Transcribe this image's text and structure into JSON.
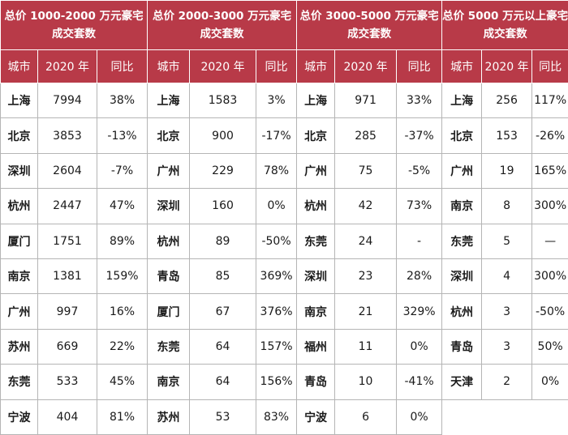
{
  "groups": [
    {
      "title": "总价 1000-2000 万元豪宅成交套数",
      "col_city": "城市",
      "col_year": "2020 年",
      "col_yoy": "同比",
      "rows": [
        {
          "city": "上海",
          "count": "7994",
          "yoy": "38%"
        },
        {
          "city": "北京",
          "count": "3853",
          "yoy": "-13%"
        },
        {
          "city": "深圳",
          "count": "2604",
          "yoy": "-7%"
        },
        {
          "city": "杭州",
          "count": "2447",
          "yoy": "47%"
        },
        {
          "city": "厦门",
          "count": "1751",
          "yoy": "89%"
        },
        {
          "city": "南京",
          "count": "1381",
          "yoy": "159%"
        },
        {
          "city": "广州",
          "count": "997",
          "yoy": "16%"
        },
        {
          "city": "苏州",
          "count": "669",
          "yoy": "22%"
        },
        {
          "city": "东莞",
          "count": "533",
          "yoy": "45%"
        },
        {
          "city": "宁波",
          "count": "404",
          "yoy": "81%"
        }
      ]
    },
    {
      "title": "总价 2000-3000 万元豪宅成交套数",
      "col_city": "城市",
      "col_year": "2020 年",
      "col_yoy": "同比",
      "rows": [
        {
          "city": "上海",
          "count": "1583",
          "yoy": "3%"
        },
        {
          "city": "北京",
          "count": "900",
          "yoy": "-17%"
        },
        {
          "city": "广州",
          "count": "229",
          "yoy": "78%"
        },
        {
          "city": "深圳",
          "count": "160",
          "yoy": "0%"
        },
        {
          "city": "杭州",
          "count": "89",
          "yoy": "-50%"
        },
        {
          "city": "青岛",
          "count": "85",
          "yoy": "369%"
        },
        {
          "city": "厦门",
          "count": "67",
          "yoy": "376%"
        },
        {
          "city": "东莞",
          "count": "64",
          "yoy": "157%"
        },
        {
          "city": "南京",
          "count": "64",
          "yoy": "156%"
        },
        {
          "city": "苏州",
          "count": "53",
          "yoy": "83%"
        }
      ]
    },
    {
      "title": "总价 3000-5000 万元豪宅成交套数",
      "col_city": "城市",
      "col_year": "2020 年",
      "col_yoy": "同比",
      "rows": [
        {
          "city": "上海",
          "count": "971",
          "yoy": "33%"
        },
        {
          "city": "北京",
          "count": "285",
          "yoy": "-37%"
        },
        {
          "city": "广州",
          "count": "75",
          "yoy": "-5%"
        },
        {
          "city": "杭州",
          "count": "42",
          "yoy": "73%"
        },
        {
          "city": "东莞",
          "count": "24",
          "yoy": "-"
        },
        {
          "city": "深圳",
          "count": "23",
          "yoy": "28%"
        },
        {
          "city": "南京",
          "count": "21",
          "yoy": "329%"
        },
        {
          "city": "福州",
          "count": "11",
          "yoy": "0%"
        },
        {
          "city": "青岛",
          "count": "10",
          "yoy": "-41%"
        },
        {
          "city": "宁波",
          "count": "6",
          "yoy": "0%"
        }
      ]
    },
    {
      "title": "总价 5000 万元以上豪宅成交套数",
      "col_city": "城市",
      "col_year": "2020 年",
      "col_yoy": "同比",
      "rows": [
        {
          "city": "上海",
          "count": "256",
          "yoy": "117%"
        },
        {
          "city": "北京",
          "count": "153",
          "yoy": "-26%"
        },
        {
          "city": "广州",
          "count": "19",
          "yoy": "165%"
        },
        {
          "city": "南京",
          "count": "8",
          "yoy": "300%"
        },
        {
          "city": "东莞",
          "count": "5",
          "yoy": "—"
        },
        {
          "city": "深圳",
          "count": "4",
          "yoy": "300%"
        },
        {
          "city": "杭州",
          "count": "3",
          "yoy": "-50%"
        },
        {
          "city": "青岛",
          "count": "3",
          "yoy": "50%"
        },
        {
          "city": "天津",
          "count": "2",
          "yoy": "0%"
        }
      ]
    }
  ]
}
